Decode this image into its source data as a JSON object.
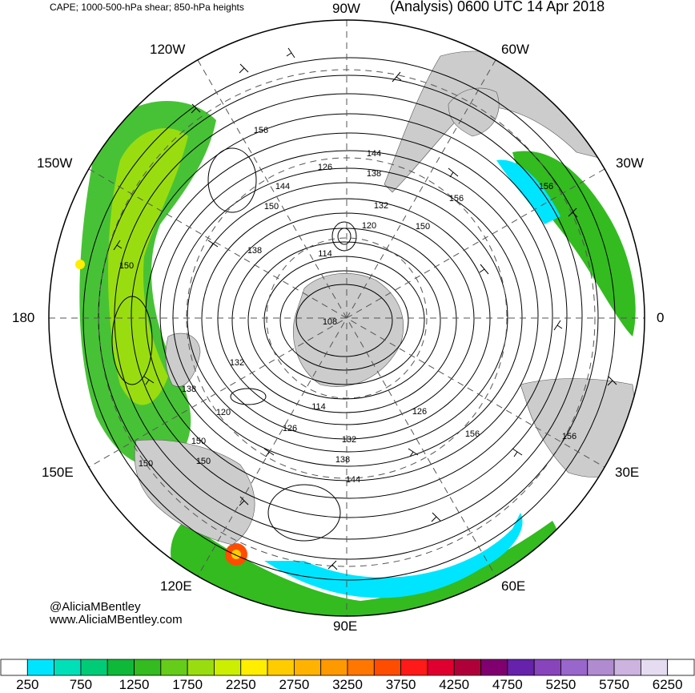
{
  "header": {
    "left_title": "CAPE; 1000-500-hPa shear; 850-hPa heights",
    "right_title": "(Analysis) 0600 UTC 14 Apr 2018"
  },
  "longitude_labels": {
    "n": "90W",
    "ne": "60W",
    "ene": "30W",
    "e": "0",
    "ese": "30E",
    "se": "60E",
    "s": "90E",
    "sw": "120E",
    "wsw": "150E",
    "w": "180",
    "wnw": "150W",
    "nw": "120W"
  },
  "credits": {
    "twitter": "@AliciaMBentley",
    "website": "www.AliciaMBentley.com"
  },
  "contour_labels": [
    "156",
    "144",
    "126",
    "138",
    "132",
    "120",
    "150",
    "138",
    "114",
    "150",
    "108",
    "132",
    "138",
    "120",
    "114",
    "126",
    "126",
    "132",
    "138",
    "144",
    "150",
    "144",
    "150",
    "156",
    "156",
    "156",
    "156",
    "150",
    "150"
  ],
  "colorbar": {
    "labels": [
      "250",
      "750",
      "1250",
      "1750",
      "2250",
      "2750",
      "3250",
      "3750",
      "4250",
      "4750",
      "5250",
      "5750",
      "6250"
    ],
    "colors": [
      "#ffffff",
      "#00e5ff",
      "#00e0b8",
      "#00cc77",
      "#10b83a",
      "#33bb20",
      "#66cc1a",
      "#99dd10",
      "#ccee00",
      "#ffee00",
      "#ffcc00",
      "#ffb300",
      "#ff9900",
      "#ff7700",
      "#ff4d00",
      "#ff1a1a",
      "#e00030",
      "#b0003a",
      "#800070",
      "#6622aa",
      "#8844bb",
      "#9966cc",
      "#b08bd0",
      "#cdb3e0",
      "#e6dcf2",
      "#ffffff"
    ]
  },
  "map_colors": {
    "land": "#cccccc",
    "cape_low": "#00e5ff",
    "cape_mid": "#33bb20",
    "cape_high": "#ccee00",
    "cape_peak": "#ff4d00"
  }
}
